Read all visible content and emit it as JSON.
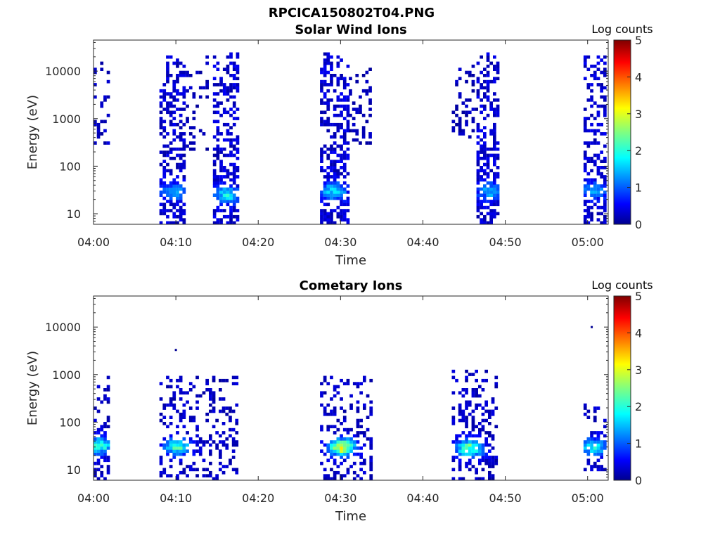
{
  "figure": {
    "title": "RPCICA150802T04.PNG"
  },
  "chart_data": [
    {
      "type": "heatmap",
      "title": "Solar Wind Ions",
      "xlabel": "Time",
      "ylabel": "Energy (eV)",
      "x_ticks": [
        "04:00",
        "04:10",
        "04:20",
        "04:30",
        "04:40",
        "04:50",
        "05:00"
      ],
      "x_range_minutes": [
        0,
        62.5
      ],
      "y_scale": "log",
      "y_ticks": [
        "10",
        "100",
        "1000",
        "10000"
      ],
      "ylim": [
        6,
        45000
      ],
      "colorbar": {
        "label": "Log counts",
        "ticks": [
          "0",
          "1",
          "2",
          "3",
          "4",
          "5"
        ],
        "range": [
          0,
          5
        ],
        "colormap": "jet"
      },
      "grid": false,
      "bursts": [
        {
          "t_start": 0.0,
          "t_end": 1.7,
          "e_min": 300,
          "e_max": 15000,
          "bg": 0.5,
          "density": 0.35,
          "hot_e": null,
          "hot_t": null,
          "hot": 0
        },
        {
          "t_start": 8.0,
          "t_end": 11.0,
          "e_min": 6,
          "e_max": 20000,
          "bg": 0.6,
          "density": 0.55,
          "hot_e": 30,
          "hot_t": 9.6,
          "hot": 1.3
        },
        {
          "t_start": 11.2,
          "t_end": 14.0,
          "e_min": 200,
          "e_max": 20000,
          "bg": 0.4,
          "density": 0.2,
          "hot_e": null,
          "hot_t": null,
          "hot": 0
        },
        {
          "t_start": 14.5,
          "t_end": 17.5,
          "e_min": 6,
          "e_max": 25000,
          "bg": 0.6,
          "density": 0.6,
          "hot_e": 25,
          "hot_t": 16.0,
          "hot": 1.7
        },
        {
          "t_start": 27.5,
          "t_end": 31.0,
          "e_min": 6,
          "e_max": 25000,
          "bg": 0.6,
          "density": 0.6,
          "hot_e": 30,
          "hot_t": 29.0,
          "hot": 1.6
        },
        {
          "t_start": 31.0,
          "t_end": 33.5,
          "e_min": 300,
          "e_max": 12000,
          "bg": 0.4,
          "density": 0.3,
          "hot_e": null,
          "hot_t": null,
          "hot": 0
        },
        {
          "t_start": 43.5,
          "t_end": 46.5,
          "e_min": 400,
          "e_max": 15000,
          "bg": 0.4,
          "density": 0.3,
          "hot_e": null,
          "hot_t": null,
          "hot": 0
        },
        {
          "t_start": 46.5,
          "t_end": 49.0,
          "e_min": 6,
          "e_max": 25000,
          "bg": 0.6,
          "density": 0.6,
          "hot_e": 30,
          "hot_t": 48.0,
          "hot": 1.3
        },
        {
          "t_start": 59.5,
          "t_end": 62.0,
          "e_min": 6,
          "e_max": 20000,
          "bg": 0.6,
          "density": 0.55,
          "hot_e": 30,
          "hot_t": 60.5,
          "hot": 1.3
        }
      ]
    },
    {
      "type": "heatmap",
      "title": "Cometary Ions",
      "xlabel": "Time",
      "ylabel": "Energy (eV)",
      "x_ticks": [
        "04:00",
        "04:10",
        "04:20",
        "04:30",
        "04:40",
        "04:50",
        "05:00"
      ],
      "x_range_minutes": [
        0,
        62.5
      ],
      "y_scale": "log",
      "y_ticks": [
        "10",
        "100",
        "1000",
        "10000"
      ],
      "ylim": [
        6,
        45000
      ],
      "colorbar": {
        "label": "Log counts",
        "ticks": [
          "0",
          "1",
          "2",
          "3",
          "4",
          "5"
        ],
        "range": [
          0,
          5
        ],
        "colormap": "jet"
      },
      "grid": false,
      "bursts": [
        {
          "t_start": 0.0,
          "t_end": 1.8,
          "e_min": 6,
          "e_max": 900,
          "bg": 0.5,
          "density": 0.45,
          "hot_e": 32,
          "hot_t": 0.5,
          "hot": 2.2
        },
        {
          "t_start": 8.0,
          "t_end": 17.5,
          "e_min": 6,
          "e_max": 1000,
          "bg": 0.5,
          "density": 0.35,
          "hot_e": 30,
          "hot_t": 10.0,
          "hot": 2.3
        },
        {
          "t_start": 27.5,
          "t_end": 33.5,
          "e_min": 6,
          "e_max": 900,
          "bg": 0.5,
          "density": 0.4,
          "hot_e": 30,
          "hot_t": 30.0,
          "hot": 3.3
        },
        {
          "t_start": 43.5,
          "t_end": 49.0,
          "e_min": 6,
          "e_max": 1200,
          "bg": 0.5,
          "density": 0.4,
          "hot_e": 28,
          "hot_t": 45.5,
          "hot": 2.6
        },
        {
          "t_start": 59.5,
          "t_end": 62.0,
          "e_min": 10,
          "e_max": 250,
          "bg": 0.5,
          "density": 0.35,
          "hot_e": 30,
          "hot_t": 60.5,
          "hot": 2.0
        }
      ],
      "isolated_points": [
        {
          "t": 10.0,
          "e": 3300,
          "v": 0.1
        },
        {
          "t": 60.5,
          "e": 10000,
          "v": 0.1
        }
      ]
    }
  ]
}
